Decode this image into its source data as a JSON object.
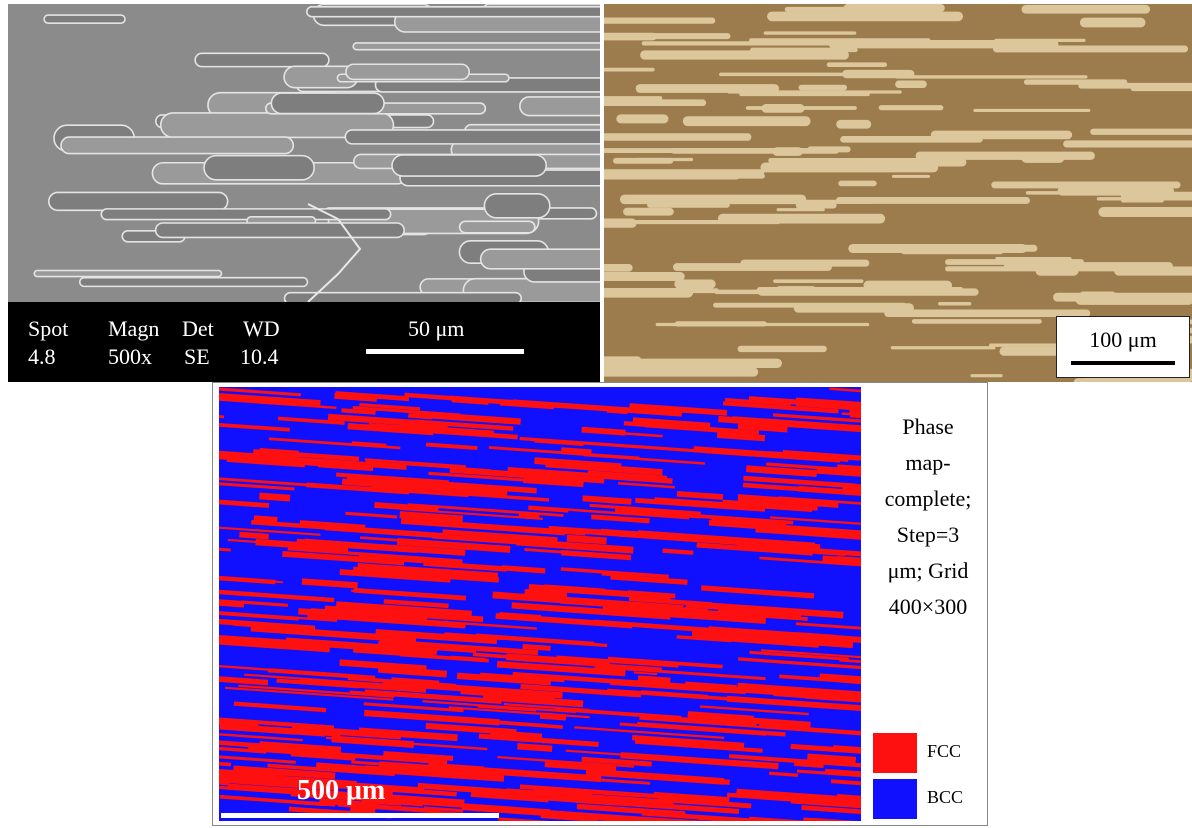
{
  "sem_panel": {
    "labels": {
      "spot_header": "Spot",
      "magn_header": "Magn",
      "det_header": "Det",
      "wd_header": "WD",
      "spot_value": "4.8",
      "magn_value": "500x",
      "det_value": "SE",
      "wd_value": "10.4"
    },
    "scale_bar": "50 μm"
  },
  "optical_panel": {
    "scale_bar": "100 μm"
  },
  "phase_map_panel": {
    "caption_lines": [
      "Phase",
      "map-",
      "complete;",
      "Step=3",
      "μm; Grid",
      "400×300"
    ],
    "scale_bar": "500 μm",
    "legend": [
      {
        "label": "FCC",
        "color": "#ff1010"
      },
      {
        "label": "BCC",
        "color": "#1010ff"
      }
    ]
  }
}
